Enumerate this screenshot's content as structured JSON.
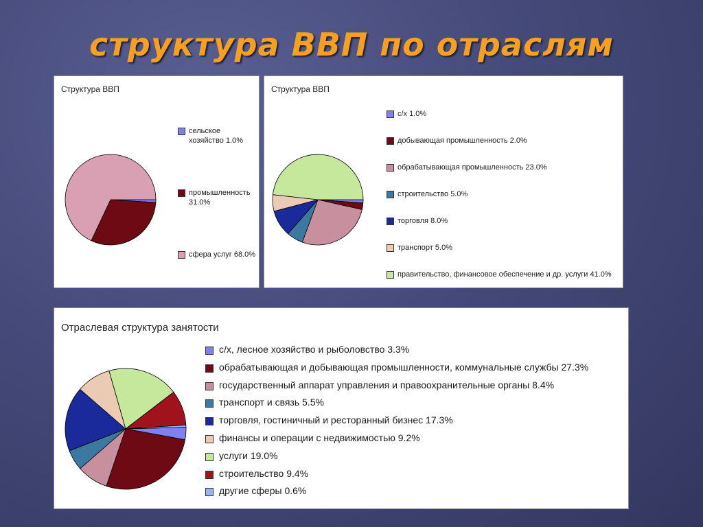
{
  "title": "структура ВВП по отраслям",
  "chart_data": [
    {
      "type": "pie",
      "title": "Структура ВВП",
      "slices": [
        {
          "label": "сельское\nхозяйство",
          "value": 1.0,
          "value_label": "1.0%",
          "color": "#8080f0"
        },
        {
          "label": "промышленность",
          "value": 31.0,
          "value_label": "31.0%",
          "color": "#6e0a14"
        },
        {
          "label": "сфера услуг",
          "value": 68.0,
          "value_label": "68.0%",
          "color": "#d9a0b4"
        }
      ]
    },
    {
      "type": "pie",
      "title": "Структура ВВП",
      "slices": [
        {
          "label": "с/х",
          "value": 1.0,
          "value_label": "1.0%",
          "color": "#8080f0"
        },
        {
          "label": "добывающая промышленность",
          "value": 2.0,
          "value_label": "2.0%",
          "color": "#6e0a14"
        },
        {
          "label": "обрабатывающая промышленность",
          "value": 23.0,
          "value_label": "23.0%",
          "color": "#c8909e"
        },
        {
          "label": "строительство",
          "value": 5.0,
          "value_label": "5.0%",
          "color": "#3c78a0"
        },
        {
          "label": "торговля",
          "value": 8.0,
          "value_label": "8.0%",
          "color": "#1a2a9a"
        },
        {
          "label": "транспорт",
          "value": 5.0,
          "value_label": "5.0%",
          "color": "#ebcbb3"
        },
        {
          "label": "правительство, финансовое обеспечение и др. услуги",
          "value": 41.0,
          "value_label": "41.0%",
          "color": "#c6e89c"
        }
      ]
    },
    {
      "type": "pie",
      "title": "Отраслевая структура занятости",
      "slices": [
        {
          "label": "с/х, лесное хозяйство и рыболовство",
          "value": 3.3,
          "value_label": "3.3%",
          "color": "#8080f0"
        },
        {
          "label": "обрабатывающая и добывающая промышленности, коммунальные службы",
          "value": 27.3,
          "value_label": "27.3%",
          "color": "#6e0a14"
        },
        {
          "label": "государственный аппарат управления и правоохранительные органы",
          "value": 8.4,
          "value_label": "8.4%",
          "color": "#c8909e"
        },
        {
          "label": "транспорт и связь",
          "value": 5.5,
          "value_label": "5.5%",
          "color": "#3c78a0"
        },
        {
          "label": "торговля, гостиничный и ресторанный бизнес",
          "value": 17.3,
          "value_label": "17.3%",
          "color": "#1a2a9a"
        },
        {
          "label": "финансы и операции с недвижимостью",
          "value": 9.2,
          "value_label": "9.2%",
          "color": "#ebcbb3"
        },
        {
          "label": "услуги",
          "value": 19.0,
          "value_label": "19.0%",
          "color": "#c6e89c"
        },
        {
          "label": "строительство",
          "value": 9.4,
          "value_label": "9.4%",
          "color": "#a0121c"
        },
        {
          "label": "другие сферы",
          "value": 0.6,
          "value_label": "0.6%",
          "color": "#9ab4f0"
        }
      ]
    }
  ]
}
